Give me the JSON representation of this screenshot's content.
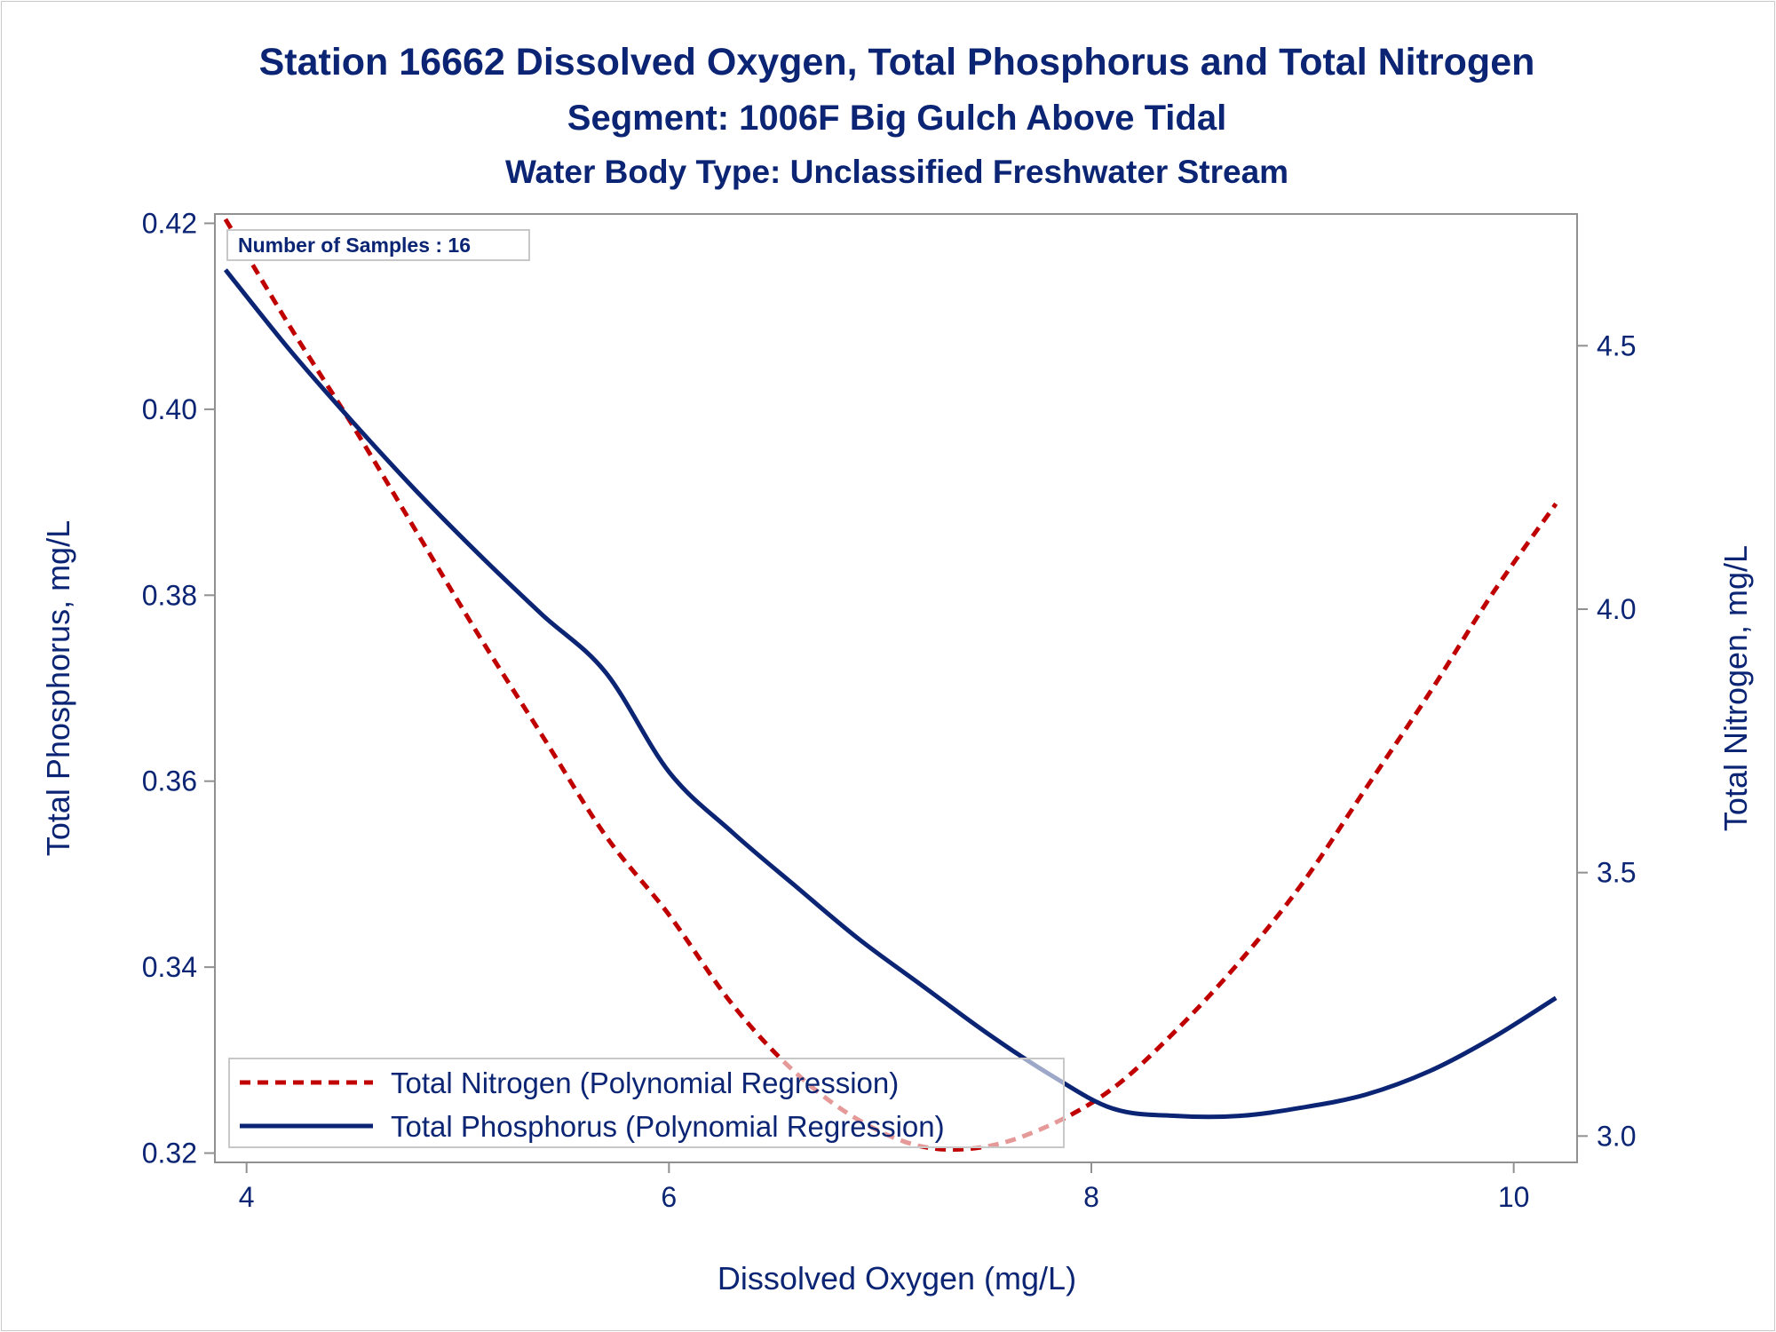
{
  "titles": {
    "line1": "Station 16662  Dissolved Oxygen, Total Phosphorus and Total Nitrogen",
    "line2": "Segment: 1006F  Big Gulch Above Tidal",
    "line3": "Water Body Type: Unclassified Freshwater Stream"
  },
  "inset": {
    "label": "Number of Samples : 16"
  },
  "chart_data": {
    "type": "line",
    "xlabel": "Dissolved Oxygen (mg/L)",
    "ylabel": "Total Phosphorus, mg/L",
    "y2label": "Total Nitrogen, mg/L",
    "xlim": [
      3.85,
      10.3
    ],
    "ylim": [
      0.319,
      0.421
    ],
    "y2lim": [
      2.95,
      4.75
    ],
    "xticks": [
      "4",
      "6",
      "8",
      "10"
    ],
    "yticks": [
      "0.32",
      "0.34",
      "0.36",
      "0.38",
      "0.40",
      "0.42"
    ],
    "y2ticks": [
      "3.0",
      "3.5",
      "4.0",
      "4.5"
    ],
    "grid": false,
    "legend_position": "bottom-left-inside",
    "series": [
      {
        "name": "Total Nitrogen (Polynomial Regression)",
        "axis": "right",
        "color": "#c00000",
        "dash": "dashed",
        "x": [
          3.9,
          4.2,
          4.5,
          4.8,
          5.1,
          5.4,
          5.7,
          6.0,
          6.3,
          6.6,
          6.9,
          7.2,
          7.5,
          7.8,
          8.1,
          8.4,
          8.7,
          9.0,
          9.3,
          9.6,
          9.9,
          10.2
        ],
        "values": [
          4.74,
          4.54,
          4.35,
          4.15,
          3.95,
          3.76,
          3.57,
          3.42,
          3.25,
          3.12,
          3.03,
          2.98,
          2.98,
          3.02,
          3.09,
          3.2,
          3.33,
          3.48,
          3.66,
          3.84,
          4.03,
          4.2
        ]
      },
      {
        "name": "Total Phosphorus (Polynomial Regression)",
        "axis": "left",
        "color": "#0b2574",
        "dash": "solid",
        "x": [
          3.9,
          4.2,
          4.5,
          4.8,
          5.1,
          5.4,
          5.7,
          6.0,
          6.3,
          6.6,
          6.9,
          7.2,
          7.5,
          7.8,
          8.1,
          8.4,
          8.7,
          9.0,
          9.3,
          9.6,
          9.9,
          10.2
        ],
        "values": [
          0.415,
          0.4065,
          0.3987,
          0.3913,
          0.3844,
          0.3779,
          0.3717,
          0.361,
          0.3545,
          0.3487,
          0.343,
          0.338,
          0.333,
          0.3285,
          0.3248,
          0.324,
          0.324,
          0.3249,
          0.3263,
          0.3288,
          0.3324,
          0.3367
        ]
      }
    ]
  }
}
